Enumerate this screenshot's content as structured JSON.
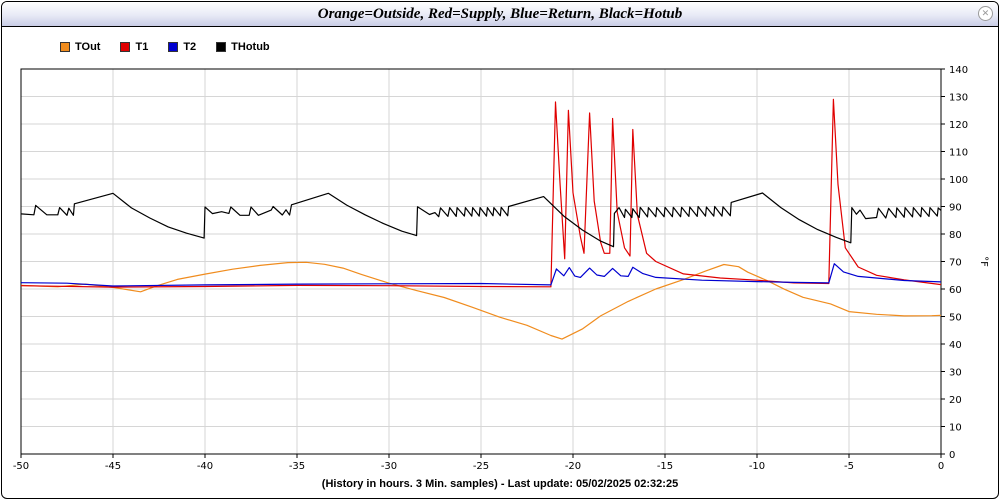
{
  "window": {
    "title": "Orange=Outside, Red=Supply, Blue=Return, Black=Hotub",
    "close_label": "×"
  },
  "footer": "(History in hours. 3 Min. samples) - Last update: 05/02/2025 02:32:25",
  "chart_data": {
    "type": "line",
    "title": "Orange=Outside, Red=Supply, Blue=Return, Black=Hotub",
    "xlabel": "(History in hours. 3 Min. samples) - Last update: 05/02/2025 02:32:25",
    "ylabel": "°F",
    "xlim": [
      -50,
      0
    ],
    "ylim": [
      0,
      140
    ],
    "x_ticks": [
      -50,
      -45,
      -40,
      -35,
      -30,
      -25,
      -20,
      -15,
      -10,
      -5,
      0
    ],
    "y_ticks": [
      0,
      10,
      20,
      30,
      40,
      50,
      60,
      70,
      80,
      90,
      100,
      110,
      120,
      130,
      140
    ],
    "grid": true,
    "legend_position": "top-left",
    "series": [
      {
        "name": "TOut",
        "color": "#f08c1e",
        "points": [
          [
            -50,
            61.3
          ],
          [
            -48,
            60.8
          ],
          [
            -46.5,
            61.8
          ],
          [
            -45,
            60.6
          ],
          [
            -43.5,
            59.0
          ],
          [
            -42.6,
            61.2
          ],
          [
            -41.5,
            63.5
          ],
          [
            -40,
            65.4
          ],
          [
            -38.5,
            67.2
          ],
          [
            -37,
            68.6
          ],
          [
            -35.5,
            69.6
          ],
          [
            -34.5,
            69.7
          ],
          [
            -33.5,
            69.0
          ],
          [
            -32.5,
            67.6
          ],
          [
            -31.5,
            65.3
          ],
          [
            -30,
            62.1
          ],
          [
            -28.5,
            59.4
          ],
          [
            -27,
            56.9
          ],
          [
            -25.5,
            53.4
          ],
          [
            -24,
            49.8
          ],
          [
            -22.5,
            46.8
          ],
          [
            -21.2,
            43.1
          ],
          [
            -20.6,
            41.8
          ],
          [
            -19.5,
            45.4
          ],
          [
            -18.5,
            50.2
          ],
          [
            -17,
            55.5
          ],
          [
            -15.5,
            60.0
          ],
          [
            -14,
            63.4
          ],
          [
            -12.8,
            66.5
          ],
          [
            -11.8,
            68.9
          ],
          [
            -11,
            68.1
          ],
          [
            -10.5,
            66.1
          ],
          [
            -9.5,
            63.2
          ],
          [
            -8.5,
            59.9
          ],
          [
            -7.5,
            57.0
          ],
          [
            -6,
            54.6
          ],
          [
            -5,
            51.8
          ],
          [
            -3.5,
            50.8
          ],
          [
            -2,
            50.2
          ],
          [
            -0.5,
            50.3
          ],
          [
            0,
            50.4
          ]
        ]
      },
      {
        "name": "T1",
        "color": "#e00000",
        "points": [
          [
            -50,
            61.2
          ],
          [
            -45,
            60.7
          ],
          [
            -40,
            60.9
          ],
          [
            -35,
            61.3
          ],
          [
            -30,
            61.2
          ],
          [
            -25,
            60.9
          ],
          [
            -21.3,
            60.8
          ],
          [
            -21.2,
            60.8
          ],
          [
            -20.95,
            128
          ],
          [
            -20.7,
            98
          ],
          [
            -20.45,
            71
          ],
          [
            -20.25,
            125
          ],
          [
            -20.0,
            95
          ],
          [
            -19.6,
            79
          ],
          [
            -19.4,
            73
          ],
          [
            -19.1,
            124
          ],
          [
            -18.85,
            92
          ],
          [
            -18.5,
            77
          ],
          [
            -18.3,
            73
          ],
          [
            -18.0,
            73
          ],
          [
            -17.85,
            122
          ],
          [
            -17.6,
            88
          ],
          [
            -17.2,
            75
          ],
          [
            -16.9,
            72
          ],
          [
            -16.75,
            118
          ],
          [
            -16.5,
            87
          ],
          [
            -16.0,
            73
          ],
          [
            -15.5,
            70
          ],
          [
            -14,
            65.5
          ],
          [
            -12,
            64.0
          ],
          [
            -10,
            63.2
          ],
          [
            -8,
            62.2
          ],
          [
            -6.1,
            62.0
          ],
          [
            -5.85,
            129
          ],
          [
            -5.6,
            98
          ],
          [
            -5.2,
            75
          ],
          [
            -4.5,
            68
          ],
          [
            -3.5,
            65
          ],
          [
            -2,
            63.3
          ],
          [
            0,
            61.6
          ]
        ]
      },
      {
        "name": "T2",
        "color": "#0000d0",
        "points": [
          [
            -50,
            62.3
          ],
          [
            -47.5,
            62.1
          ],
          [
            -45,
            61.1
          ],
          [
            -40,
            61.5
          ],
          [
            -35,
            61.8
          ],
          [
            -30,
            61.9
          ],
          [
            -25,
            62.0
          ],
          [
            -21.2,
            61.5
          ],
          [
            -20.9,
            67.3
          ],
          [
            -20.5,
            64.8
          ],
          [
            -20.2,
            67.8
          ],
          [
            -19.9,
            64.7
          ],
          [
            -19.6,
            64.2
          ],
          [
            -19.1,
            67.6
          ],
          [
            -18.7,
            65.1
          ],
          [
            -18.3,
            64.6
          ],
          [
            -17.85,
            67.5
          ],
          [
            -17.4,
            64.8
          ],
          [
            -17.0,
            64.6
          ],
          [
            -16.75,
            67.9
          ],
          [
            -16.2,
            65.6
          ],
          [
            -15.5,
            64.2
          ],
          [
            -13,
            63.2
          ],
          [
            -10,
            62.7
          ],
          [
            -8,
            62.4
          ],
          [
            -6.1,
            62.2
          ],
          [
            -5.8,
            69.2
          ],
          [
            -5.3,
            66.2
          ],
          [
            -4.5,
            64.6
          ],
          [
            -2,
            63.1
          ],
          [
            0,
            62.6
          ]
        ]
      },
      {
        "name": "THotub",
        "color": "#000000",
        "points": [
          [
            -50,
            87.3
          ],
          [
            -49.3,
            87.0
          ],
          [
            -49.2,
            90.4
          ],
          [
            -48.6,
            87.0
          ],
          [
            -48.0,
            87.0
          ],
          [
            -47.9,
            89.6
          ],
          [
            -47.5,
            86.8
          ],
          [
            -47.4,
            89.4
          ],
          [
            -47.15,
            86.8
          ],
          [
            -47.1,
            91.0
          ],
          [
            -45,
            94.8
          ],
          [
            -44,
            89.5
          ],
          [
            -43,
            85.8
          ],
          [
            -42,
            82.6
          ],
          [
            -41,
            80.3
          ],
          [
            -40.05,
            78.5
          ],
          [
            -40,
            89.8
          ],
          [
            -39.6,
            87.4
          ],
          [
            -39.1,
            88.1
          ],
          [
            -38.7,
            87.5
          ],
          [
            -38.6,
            89.8
          ],
          [
            -38.1,
            86.8
          ],
          [
            -37.6,
            86.8
          ],
          [
            -37.5,
            89.8
          ],
          [
            -37.1,
            86.8
          ],
          [
            -36.4,
            88.7
          ],
          [
            -36.3,
            90.0
          ],
          [
            -35.8,
            86.9
          ],
          [
            -35.6,
            88.8
          ],
          [
            -35.4,
            86.9
          ],
          [
            -35.3,
            90.6
          ],
          [
            -33.3,
            94.8
          ],
          [
            -32.3,
            90.5
          ],
          [
            -31.3,
            87.0
          ],
          [
            -30.3,
            83.8
          ],
          [
            -29.3,
            81.0
          ],
          [
            -28.5,
            79.4
          ],
          [
            -28.45,
            89.9
          ],
          [
            -27.8,
            87.1
          ],
          [
            -27.5,
            87.8
          ],
          [
            -27.3,
            86.3
          ],
          [
            -27.2,
            89.5
          ],
          [
            -26.8,
            86.4
          ],
          [
            -26.7,
            89.6
          ],
          [
            -26.35,
            86.4
          ],
          [
            -26.3,
            89.6
          ],
          [
            -25.9,
            86.5
          ],
          [
            -25.85,
            89.6
          ],
          [
            -25.5,
            86.5
          ],
          [
            -25.45,
            89.6
          ],
          [
            -25.1,
            86.5
          ],
          [
            -25.05,
            89.6
          ],
          [
            -24.7,
            86.5
          ],
          [
            -24.65,
            89.6
          ],
          [
            -24.35,
            86.6
          ],
          [
            -24.3,
            89.6
          ],
          [
            -23.95,
            86.6
          ],
          [
            -23.9,
            89.7
          ],
          [
            -23.55,
            86.6
          ],
          [
            -23.5,
            90.0
          ],
          [
            -21.6,
            93.6
          ],
          [
            -20.5,
            86.5
          ],
          [
            -19.5,
            81.5
          ],
          [
            -18.5,
            77.4
          ],
          [
            -17.8,
            75.4
          ],
          [
            -17.75,
            87.5
          ],
          [
            -17.5,
            89.6
          ],
          [
            -17.2,
            86.0
          ],
          [
            -17.15,
            89.0
          ],
          [
            -16.8,
            86.0
          ],
          [
            -16.75,
            89.2
          ],
          [
            -16.4,
            86.0
          ],
          [
            -16.35,
            89.7
          ],
          [
            -15.95,
            86.2
          ],
          [
            -15.9,
            89.6
          ],
          [
            -15.5,
            86.3
          ],
          [
            -15.45,
            89.6
          ],
          [
            -15.05,
            86.3
          ],
          [
            -15.0,
            89.7
          ],
          [
            -14.6,
            86.3
          ],
          [
            -14.55,
            89.7
          ],
          [
            -14.15,
            86.3
          ],
          [
            -14.1,
            89.7
          ],
          [
            -13.7,
            86.4
          ],
          [
            -13.65,
            89.8
          ],
          [
            -13.25,
            86.4
          ],
          [
            -13.2,
            90.0
          ],
          [
            -12.8,
            86.5
          ],
          [
            -12.75,
            89.8
          ],
          [
            -12.35,
            86.5
          ],
          [
            -12.3,
            90.0
          ],
          [
            -11.9,
            86.5
          ],
          [
            -11.85,
            89.9
          ],
          [
            -11.45,
            86.6
          ],
          [
            -11.4,
            91.5
          ],
          [
            -9.7,
            94.9
          ],
          [
            -8.7,
            89.6
          ],
          [
            -7.7,
            85.2
          ],
          [
            -6.7,
            81.6
          ],
          [
            -5.7,
            78.8
          ],
          [
            -4.9,
            76.8
          ],
          [
            -4.85,
            89.6
          ],
          [
            -4.6,
            87.2
          ],
          [
            -4.4,
            88.7
          ],
          [
            -4.1,
            85.6
          ],
          [
            -3.5,
            86.0
          ],
          [
            -3.4,
            89.4
          ],
          [
            -3.0,
            85.8
          ],
          [
            -2.85,
            89.3
          ],
          [
            -2.45,
            86.0
          ],
          [
            -2.4,
            89.5
          ],
          [
            -2.0,
            86.1
          ],
          [
            -1.95,
            89.6
          ],
          [
            -1.55,
            86.2
          ],
          [
            -1.5,
            89.6
          ],
          [
            -1.1,
            86.3
          ],
          [
            -1.05,
            89.6
          ],
          [
            -0.65,
            86.4
          ],
          [
            -0.6,
            89.6
          ],
          [
            -0.2,
            86.5
          ],
          [
            -0.15,
            89.5
          ],
          [
            0,
            88.6
          ]
        ]
      }
    ]
  }
}
